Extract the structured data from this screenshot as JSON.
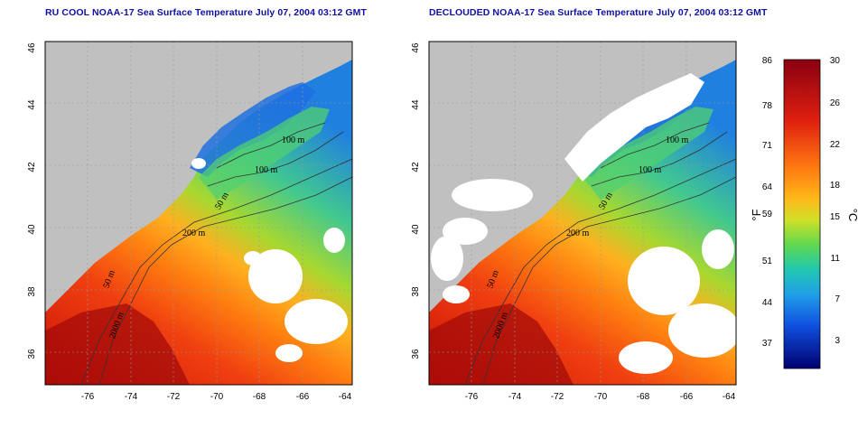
{
  "panels": [
    {
      "title": "RU COOL NOAA-17 Sea Surface Temperature July 07, 2004 03:12 GMT",
      "lat_ticks": [
        "46",
        "44",
        "42",
        "40",
        "38",
        "36"
      ],
      "lon_ticks": [
        "-76",
        "-74",
        "-72",
        "-70",
        "-68",
        "-66",
        "-64"
      ],
      "contour_labels": [
        "100 m",
        "100 m",
        "50 m",
        "200 m",
        "50 m",
        "2000 m"
      ],
      "cloud_masked": false
    },
    {
      "title": "DECLOUDED NOAA-17 Sea Surface Temperature July 07, 2004 03:12 GMT",
      "lat_ticks": [
        "46",
        "44",
        "42",
        "40",
        "38",
        "36"
      ],
      "lon_ticks": [
        "-76",
        "-74",
        "-72",
        "-70",
        "-68",
        "-66",
        "-64"
      ],
      "contour_labels": [
        "100 m",
        "100 m",
        "50 m",
        "200 m",
        "50 m",
        "2000 m"
      ],
      "cloud_masked": true
    }
  ],
  "colorbar": {
    "fahrenheit_ticks": [
      "86",
      "78",
      "71",
      "64",
      "59",
      "51",
      "44",
      "37"
    ],
    "celsius_ticks": [
      "30",
      "26",
      "22",
      "18",
      "15",
      "11",
      "7",
      "3"
    ],
    "fahrenheit_unit": "°F",
    "celsius_unit": "°C",
    "colors": [
      "#7a0010",
      "#c01010",
      "#f03010",
      "#ff7010",
      "#ffb010",
      "#e8e020",
      "#80e040",
      "#30d0a0",
      "#20b0e0",
      "#1060e0",
      "#1020c0",
      "#000080"
    ]
  },
  "colors": {
    "land": "#c0c0c0",
    "cloud": "#ffffff",
    "title": "#1010a0"
  }
}
